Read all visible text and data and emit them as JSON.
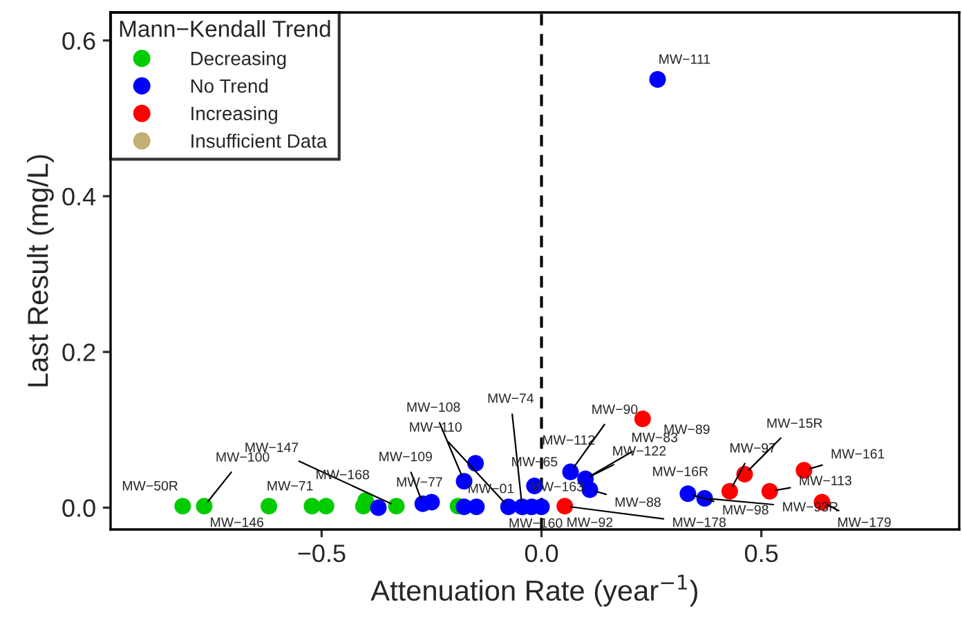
{
  "chart_data": {
    "type": "scatter",
    "xlabel": "Attenuation Rate (year$^{−1}$)",
    "ylabel": "Last Result (mg/L)",
    "legend_title": "Mann−Kendall Trend",
    "legend": "top left",
    "grid": false,
    "marker": "circle",
    "xlim": [
      -0.98,
      0.95
    ],
    "ylim": [
      -0.028,
      0.636
    ],
    "xticks": [
      {
        "value": -0.5,
        "label": "−0.5"
      },
      {
        "value": 0,
        "label": "0.0"
      },
      0.5
    ],
    "yticks": [
      {
        "value": 0,
        "label": "0.0"
      },
      0.2,
      0.4,
      0.6
    ],
    "ref_lines": [
      {
        "axis": "x",
        "value": 0,
        "line_style": "dashed",
        "color": "#000000"
      }
    ],
    "series": [
      {
        "name": "Decreasing",
        "color": "#00cc00",
        "x": [
          -0.816,
          -0.767,
          -0.62,
          -0.522,
          -0.49,
          -0.4,
          -0.405,
          -0.33,
          -0.19
        ],
        "values": [
          0.002,
          0.002,
          0.002,
          0.002,
          0.002,
          0.009,
          0.002,
          0.002,
          0.002
        ]
      },
      {
        "name": "No Trend",
        "color": "#0000ff",
        "x": [
          -0.371,
          -0.27,
          -0.25,
          -0.176,
          -0.15,
          -0.176,
          -0.148,
          -0.075,
          -0.044,
          -0.022,
          -0.016,
          0.0,
          0.066,
          0.1,
          0.11,
          0.264,
          0.333,
          0.371
        ],
        "values": [
          0.0,
          0.005,
          0.007,
          0.034,
          0.057,
          0.001,
          0.001,
          0.001,
          0.001,
          0.001,
          0.028,
          0.001,
          0.046,
          0.037,
          0.023,
          0.55,
          0.018,
          0.012
        ]
      },
      {
        "name": "Increasing",
        "color": "#ff0000",
        "x": [
          0.053,
          0.23,
          0.428,
          0.462,
          0.519,
          0.597,
          0.638
        ],
        "values": [
          0.002,
          0.114,
          0.021,
          0.043,
          0.021,
          0.048,
          0.007
        ]
      },
      {
        "name": "Insufficient Data",
        "color": "#c2b073"
      }
    ],
    "annotations": [
      {
        "text": "MW−50R",
        "x": -0.816,
        "y": 0.002
      },
      {
        "text": "MW−100",
        "x": -0.767,
        "y": 0.002
      },
      {
        "text": "MW−146",
        "x": -0.767,
        "y": 0.002
      },
      {
        "text": "MW−71",
        "x": -0.62,
        "y": 0.002
      },
      {
        "text": "MW−147",
        "x": -0.33,
        "y": 0.002
      },
      {
        "text": "MW−168",
        "x": -0.4,
        "y": 0.009
      },
      {
        "text": "MW−109",
        "x": -0.27,
        "y": 0.005
      },
      {
        "text": "MW−77",
        "x": -0.33,
        "y": 0.002
      },
      {
        "text": "MW−108",
        "x": -0.176,
        "y": 0.034
      },
      {
        "text": "MW−110",
        "x": -0.075,
        "y": 0.001
      },
      {
        "text": "MW−74",
        "x": -0.044,
        "y": 0.001
      },
      {
        "text": "MW−01",
        "x": -0.176,
        "y": 0.001
      },
      {
        "text": "MW−65",
        "x": -0.016,
        "y": 0.028
      },
      {
        "text": "MW−163",
        "x": 0.0,
        "y": 0.001
      },
      {
        "text": "MW−160",
        "x": -0.022,
        "y": 0.001
      },
      {
        "text": "MW−112",
        "x": 0.066,
        "y": 0.046
      },
      {
        "text": "MW−90",
        "x": 0.066,
        "y": 0.046
      },
      {
        "text": "MW−89",
        "x": 0.23,
        "y": 0.114
      },
      {
        "text": "MW−83",
        "x": 0.1,
        "y": 0.037
      },
      {
        "text": "MW−122",
        "x": 0.1,
        "y": 0.037
      },
      {
        "text": "MW−88",
        "x": 0.11,
        "y": 0.023
      },
      {
        "text": "MW−92",
        "x": 0.053,
        "y": 0.002
      },
      {
        "text": "MW−178",
        "x": 0.053,
        "y": 0.002
      },
      {
        "text": "MW−111",
        "x": 0.264,
        "y": 0.55
      },
      {
        "text": "MW−16R",
        "x": 0.333,
        "y": 0.018
      },
      {
        "text": "MW−98",
        "x": 0.333,
        "y": 0.018
      },
      {
        "text": "MW−93R",
        "x": 0.371,
        "y": 0.012
      },
      {
        "text": "MW−97",
        "x": 0.428,
        "y": 0.021
      },
      {
        "text": "MW−15R",
        "x": 0.462,
        "y": 0.043
      },
      {
        "text": "MW−113",
        "x": 0.519,
        "y": 0.021
      },
      {
        "text": "MW−161",
        "x": 0.597,
        "y": 0.048
      },
      {
        "text": "MW−179",
        "x": 0.638,
        "y": 0.007
      }
    ]
  }
}
